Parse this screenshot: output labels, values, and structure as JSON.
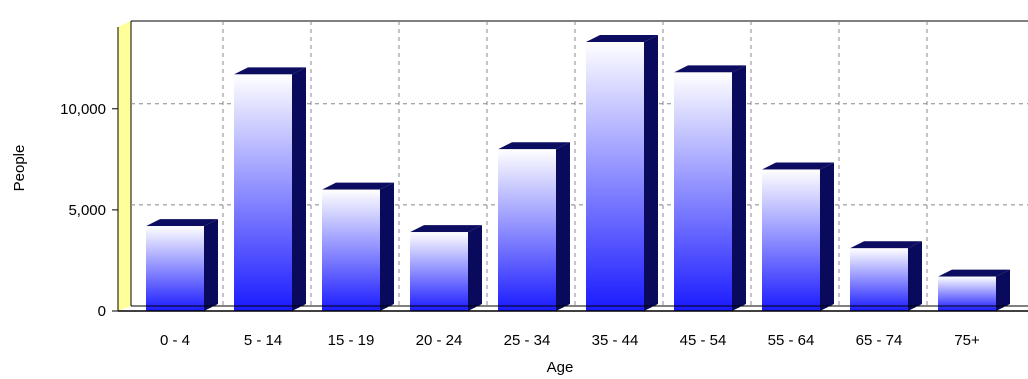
{
  "chart_data": {
    "type": "bar",
    "style": "3d",
    "title": "",
    "xlabel": "Age",
    "ylabel": "People",
    "categories": [
      "0 - 4",
      "5 - 14",
      "15 - 19",
      "20 - 24",
      "25 - 34",
      "35 - 44",
      "45 - 54",
      "55 - 64",
      "65 - 74",
      "75+"
    ],
    "values": [
      4200,
      11700,
      6000,
      3900,
      8000,
      13300,
      11800,
      7000,
      3100,
      1700
    ],
    "ylim": [
      0,
      13500
    ],
    "yticks": [
      0,
      5000,
      10000
    ],
    "ytick_labels": [
      "0",
      "5,000",
      "10,000"
    ],
    "grid": true,
    "colors": {
      "bar_top": "#ffffff",
      "bar_bottom": "#1a1aff",
      "bar_side": "#0a0a5c",
      "bar_cap": "#0c0c60",
      "back_wall_edge": "#ffff99",
      "grid": "#888888"
    }
  }
}
